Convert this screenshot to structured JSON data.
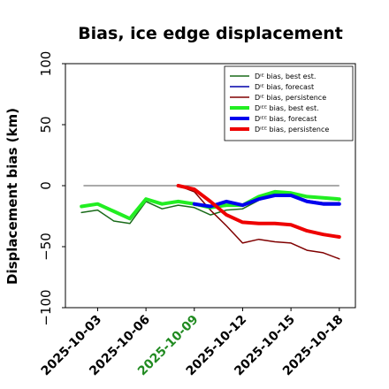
{
  "chart_data": {
    "type": "line",
    "title": "Bias, ice edge displacement",
    "xlabel": "",
    "ylabel": "Displacement bias (km)",
    "ylim": [
      -100,
      100
    ],
    "xlim": [
      "2025-10-01",
      "2025-10-19"
    ],
    "yticks": [
      -100,
      -50,
      0,
      50,
      100
    ],
    "ytick_labels": [
      "−100",
      "−50",
      "0",
      "50",
      "100"
    ],
    "xticks": [
      "2025-10-03",
      "2025-10-06",
      "2025-10-09",
      "2025-10-12",
      "2025-10-15",
      "2025-10-18"
    ],
    "highlight_xtick": "2025-10-09",
    "highlight_color": "#228B22",
    "grid": false,
    "legend_position": "top-right",
    "reference_line": 0,
    "series": [
      {
        "name": "Dᴵᴱ bias, best est.",
        "color": "#1a6b1a",
        "width": 1.5,
        "x": [
          "2025-10-02",
          "2025-10-03",
          "2025-10-04",
          "2025-10-05",
          "2025-10-06",
          "2025-10-07",
          "2025-10-08",
          "2025-10-09",
          "2025-10-10",
          "2025-10-11",
          "2025-10-12",
          "2025-10-13",
          "2025-10-14",
          "2025-10-15",
          "2025-10-16",
          "2025-10-17",
          "2025-10-18"
        ],
        "values": [
          -22,
          -20,
          -29,
          -31,
          -13,
          -19,
          -16,
          -18,
          -24,
          -20,
          -19,
          -12,
          -7,
          -7,
          -9,
          -10,
          -12
        ]
      },
      {
        "name": "Dᴵᴱ bias, forecast",
        "color": "#0000aa",
        "width": 1.5,
        "x": [
          "2025-10-09",
          "2025-10-10",
          "2025-10-11",
          "2025-10-12",
          "2025-10-13",
          "2025-10-14",
          "2025-10-15",
          "2025-10-16",
          "2025-10-17",
          "2025-10-18"
        ],
        "values": [
          -16,
          -18,
          -13,
          -16,
          -10,
          -7,
          -7,
          -12,
          -14,
          -14
        ]
      },
      {
        "name": "Dᴵᴱ bias, persistence",
        "color": "#800000",
        "width": 1.5,
        "x": [
          "2025-10-08",
          "2025-10-09",
          "2025-10-10",
          "2025-10-11",
          "2025-10-12",
          "2025-10-13",
          "2025-10-14",
          "2025-10-15",
          "2025-10-16",
          "2025-10-17",
          "2025-10-18"
        ],
        "values": [
          0,
          -5,
          -20,
          -33,
          -47,
          -44,
          -46,
          -47,
          -53,
          -55,
          -60
        ]
      },
      {
        "name": "Dᴵᴱᴱ bias, best est.",
        "color": "#22ee22",
        "width": 4,
        "x": [
          "2025-10-02",
          "2025-10-03",
          "2025-10-04",
          "2025-10-05",
          "2025-10-06",
          "2025-10-07",
          "2025-10-08",
          "2025-10-09",
          "2025-10-10",
          "2025-10-11",
          "2025-10-12",
          "2025-10-13",
          "2025-10-14",
          "2025-10-15",
          "2025-10-16",
          "2025-10-17",
          "2025-10-18"
        ],
        "values": [
          -17,
          -15,
          -21,
          -27,
          -11,
          -15,
          -13,
          -15,
          -18,
          -16,
          -16,
          -9,
          -5,
          -6,
          -9,
          -10,
          -11
        ]
      },
      {
        "name": "Dᴵᴱᴱ bias, forecast",
        "color": "#0000ee",
        "width": 4,
        "x": [
          "2025-10-09",
          "2025-10-10",
          "2025-10-11",
          "2025-10-12",
          "2025-10-13",
          "2025-10-14",
          "2025-10-15",
          "2025-10-16",
          "2025-10-17",
          "2025-10-18"
        ],
        "values": [
          -15,
          -17,
          -13,
          -16,
          -11,
          -8,
          -8,
          -13,
          -15,
          -15
        ]
      },
      {
        "name": "Dᴵᴱᴱ bias, persistence",
        "color": "#ee0000",
        "width": 4,
        "x": [
          "2025-10-08",
          "2025-10-09",
          "2025-10-10",
          "2025-10-11",
          "2025-10-12",
          "2025-10-13",
          "2025-10-14",
          "2025-10-15",
          "2025-10-16",
          "2025-10-17",
          "2025-10-18"
        ],
        "values": [
          0,
          -3,
          -13,
          -24,
          -30,
          -31,
          -31,
          -32,
          -37,
          -40,
          -42
        ]
      }
    ]
  }
}
